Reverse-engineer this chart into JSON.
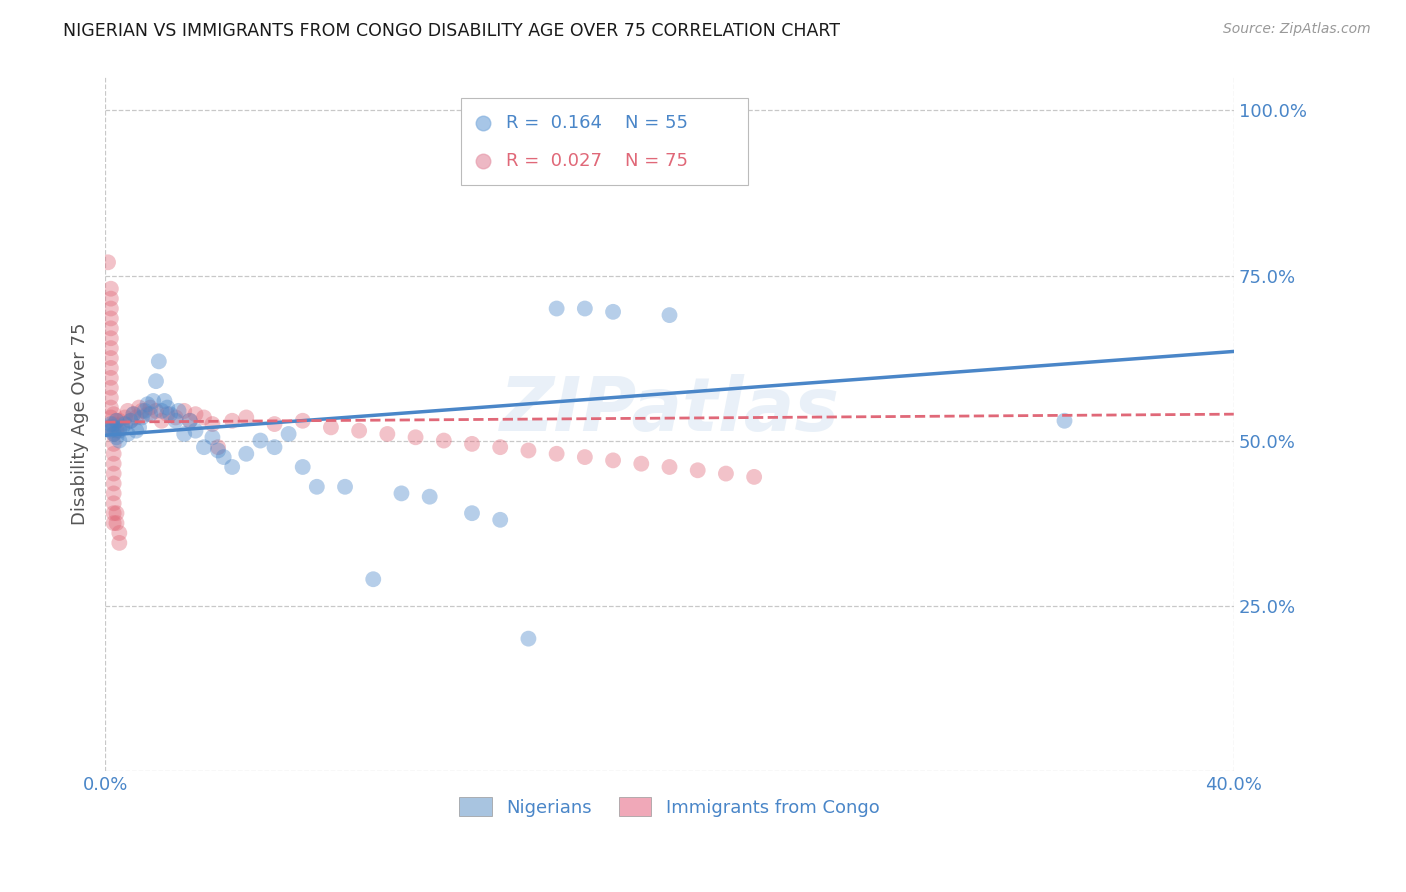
{
  "title": "NIGERIAN VS IMMIGRANTS FROM CONGO DISABILITY AGE OVER 75 CORRELATION CHART",
  "source": "Source: ZipAtlas.com",
  "ylabel": "Disability Age Over 75",
  "xlim": [
    0.0,
    0.4
  ],
  "ylim": [
    0.0,
    1.05
  ],
  "yticks": [
    0.0,
    0.25,
    0.5,
    0.75,
    1.0
  ],
  "ytick_labels": [
    "",
    "25.0%",
    "50.0%",
    "75.0%",
    "100.0%"
  ],
  "xticks": [
    0.0,
    0.05,
    0.1,
    0.15,
    0.2,
    0.25,
    0.3,
    0.35,
    0.4
  ],
  "xtick_labels": [
    "0.0%",
    "",
    "",
    "",
    "",
    "",
    "",
    "",
    "40.0%"
  ],
  "legend_labels_bottom": [
    "Nigerians",
    "Immigrants from Congo"
  ],
  "watermark": "ZIPatlas",
  "blue_color": "#4a86c8",
  "pink_color": "#e06878",
  "axis_color": "#4a86c8",
  "grid_color": "#c8c8c8",
  "blue_scatter": [
    [
      0.001,
      0.52
    ],
    [
      0.002,
      0.525
    ],
    [
      0.002,
      0.515
    ],
    [
      0.003,
      0.52
    ],
    [
      0.003,
      0.51
    ],
    [
      0.004,
      0.53
    ],
    [
      0.004,
      0.505
    ],
    [
      0.005,
      0.515
    ],
    [
      0.005,
      0.5
    ],
    [
      0.006,
      0.52
    ],
    [
      0.007,
      0.525
    ],
    [
      0.008,
      0.51
    ],
    [
      0.009,
      0.53
    ],
    [
      0.01,
      0.54
    ],
    [
      0.011,
      0.515
    ],
    [
      0.012,
      0.52
    ],
    [
      0.013,
      0.535
    ],
    [
      0.014,
      0.545
    ],
    [
      0.015,
      0.555
    ],
    [
      0.016,
      0.54
    ],
    [
      0.017,
      0.56
    ],
    [
      0.018,
      0.59
    ],
    [
      0.019,
      0.62
    ],
    [
      0.02,
      0.545
    ],
    [
      0.021,
      0.56
    ],
    [
      0.022,
      0.55
    ],
    [
      0.023,
      0.54
    ],
    [
      0.025,
      0.53
    ],
    [
      0.026,
      0.545
    ],
    [
      0.028,
      0.51
    ],
    [
      0.03,
      0.53
    ],
    [
      0.032,
      0.515
    ],
    [
      0.035,
      0.49
    ],
    [
      0.038,
      0.505
    ],
    [
      0.04,
      0.485
    ],
    [
      0.042,
      0.475
    ],
    [
      0.045,
      0.46
    ],
    [
      0.05,
      0.48
    ],
    [
      0.055,
      0.5
    ],
    [
      0.06,
      0.49
    ],
    [
      0.065,
      0.51
    ],
    [
      0.07,
      0.46
    ],
    [
      0.075,
      0.43
    ],
    [
      0.085,
      0.43
    ],
    [
      0.095,
      0.29
    ],
    [
      0.105,
      0.42
    ],
    [
      0.115,
      0.415
    ],
    [
      0.13,
      0.39
    ],
    [
      0.14,
      0.38
    ],
    [
      0.15,
      0.2
    ],
    [
      0.16,
      0.7
    ],
    [
      0.17,
      0.7
    ],
    [
      0.18,
      0.695
    ],
    [
      0.2,
      0.69
    ],
    [
      0.34,
      0.53
    ]
  ],
  "pink_scatter": [
    [
      0.001,
      0.77
    ],
    [
      0.002,
      0.73
    ],
    [
      0.002,
      0.715
    ],
    [
      0.002,
      0.7
    ],
    [
      0.002,
      0.685
    ],
    [
      0.002,
      0.67
    ],
    [
      0.002,
      0.655
    ],
    [
      0.002,
      0.64
    ],
    [
      0.002,
      0.625
    ],
    [
      0.002,
      0.61
    ],
    [
      0.002,
      0.595
    ],
    [
      0.002,
      0.58
    ],
    [
      0.002,
      0.565
    ],
    [
      0.002,
      0.55
    ],
    [
      0.002,
      0.535
    ],
    [
      0.002,
      0.52
    ],
    [
      0.003,
      0.54
    ],
    [
      0.003,
      0.525
    ],
    [
      0.003,
      0.51
    ],
    [
      0.003,
      0.495
    ],
    [
      0.003,
      0.48
    ],
    [
      0.003,
      0.465
    ],
    [
      0.003,
      0.45
    ],
    [
      0.003,
      0.435
    ],
    [
      0.003,
      0.42
    ],
    [
      0.003,
      0.405
    ],
    [
      0.003,
      0.39
    ],
    [
      0.003,
      0.375
    ],
    [
      0.004,
      0.53
    ],
    [
      0.004,
      0.515
    ],
    [
      0.004,
      0.39
    ],
    [
      0.004,
      0.375
    ],
    [
      0.005,
      0.36
    ],
    [
      0.005,
      0.345
    ],
    [
      0.005,
      0.53
    ],
    [
      0.006,
      0.525
    ],
    [
      0.007,
      0.535
    ],
    [
      0.008,
      0.545
    ],
    [
      0.009,
      0.53
    ],
    [
      0.01,
      0.54
    ],
    [
      0.011,
      0.535
    ],
    [
      0.012,
      0.55
    ],
    [
      0.013,
      0.545
    ],
    [
      0.015,
      0.54
    ],
    [
      0.016,
      0.55
    ],
    [
      0.018,
      0.545
    ],
    [
      0.02,
      0.53
    ],
    [
      0.022,
      0.54
    ],
    [
      0.025,
      0.535
    ],
    [
      0.028,
      0.545
    ],
    [
      0.03,
      0.53
    ],
    [
      0.032,
      0.54
    ],
    [
      0.035,
      0.535
    ],
    [
      0.038,
      0.525
    ],
    [
      0.04,
      0.49
    ],
    [
      0.045,
      0.53
    ],
    [
      0.05,
      0.535
    ],
    [
      0.06,
      0.525
    ],
    [
      0.07,
      0.53
    ],
    [
      0.08,
      0.52
    ],
    [
      0.09,
      0.515
    ],
    [
      0.1,
      0.51
    ],
    [
      0.11,
      0.505
    ],
    [
      0.12,
      0.5
    ],
    [
      0.13,
      0.495
    ],
    [
      0.14,
      0.49
    ],
    [
      0.15,
      0.485
    ],
    [
      0.16,
      0.48
    ],
    [
      0.17,
      0.475
    ],
    [
      0.18,
      0.47
    ],
    [
      0.19,
      0.465
    ],
    [
      0.2,
      0.46
    ],
    [
      0.21,
      0.455
    ],
    [
      0.22,
      0.45
    ],
    [
      0.23,
      0.445
    ]
  ],
  "blue_line_x": [
    0.0,
    0.4
  ],
  "blue_line_y": [
    0.508,
    0.635
  ],
  "pink_line_x": [
    0.0,
    0.4
  ],
  "pink_line_y": [
    0.528,
    0.54
  ]
}
